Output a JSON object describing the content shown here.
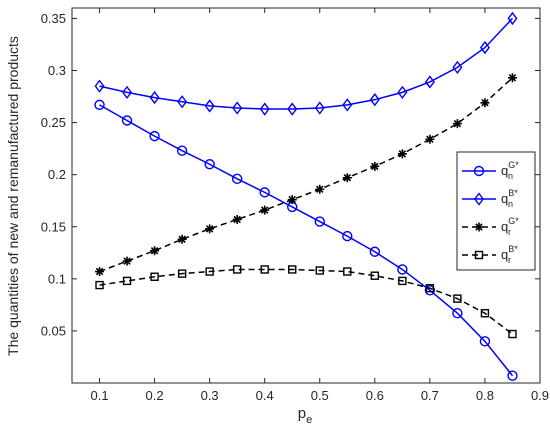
{
  "chart_data": {
    "type": "line",
    "title": "",
    "xlabel": "p",
    "xlabel_sub": "e",
    "ylabel": "The quantities of new and remanufactured products",
    "xlim": [
      0.05,
      0.9
    ],
    "ylim": [
      0.0,
      0.36
    ],
    "x_ticks": [
      "0.1",
      "0.2",
      "0.3",
      "0.4",
      "0.5",
      "0.6",
      "0.7",
      "0.8",
      "0.9"
    ],
    "x_tick_values": [
      0.1,
      0.2,
      0.3,
      0.4,
      0.5,
      0.6,
      0.7,
      0.8,
      0.9
    ],
    "y_ticks": [
      "0.05",
      "0.1",
      "0.15",
      "0.2",
      "0.25",
      "0.3",
      "0.35"
    ],
    "y_tick_values": [
      0.05,
      0.1,
      0.15,
      0.2,
      0.25,
      0.3,
      0.35
    ],
    "grid": false,
    "legend_position": "right",
    "x": [
      0.1,
      0.15,
      0.2,
      0.25,
      0.3,
      0.35,
      0.4,
      0.45,
      0.5,
      0.55,
      0.6,
      0.65,
      0.7,
      0.75,
      0.8,
      0.85
    ],
    "series": [
      {
        "label_base": "q",
        "label_sub": "n",
        "label_sup": "G*",
        "color": "#0000ff",
        "dash": false,
        "marker": "circle",
        "values": [
          0.267,
          0.252,
          0.237,
          0.223,
          0.21,
          0.196,
          0.183,
          0.169,
          0.155,
          0.141,
          0.126,
          0.109,
          0.089,
          0.067,
          0.04,
          0.007
        ]
      },
      {
        "label_base": "q",
        "label_sub": "n",
        "label_sup": "B*",
        "color": "#0000ff",
        "dash": false,
        "marker": "diamond",
        "values": [
          0.285,
          0.279,
          0.274,
          0.27,
          0.266,
          0.264,
          0.263,
          0.263,
          0.264,
          0.267,
          0.272,
          0.279,
          0.289,
          0.303,
          0.322,
          0.35
        ]
      },
      {
        "label_base": "q",
        "label_sub": "r",
        "label_sup": "G*",
        "color": "#000000",
        "dash": true,
        "marker": "star",
        "values": [
          0.107,
          0.117,
          0.127,
          0.138,
          0.148,
          0.157,
          0.166,
          0.176,
          0.186,
          0.197,
          0.208,
          0.22,
          0.234,
          0.249,
          0.269,
          0.293
        ]
      },
      {
        "label_base": "q",
        "label_sub": "r",
        "label_sup": "B*",
        "color": "#000000",
        "dash": true,
        "marker": "square",
        "values": [
          0.094,
          0.098,
          0.102,
          0.105,
          0.107,
          0.109,
          0.109,
          0.109,
          0.108,
          0.107,
          0.103,
          0.098,
          0.091,
          0.081,
          0.067,
          0.047
        ]
      }
    ]
  }
}
